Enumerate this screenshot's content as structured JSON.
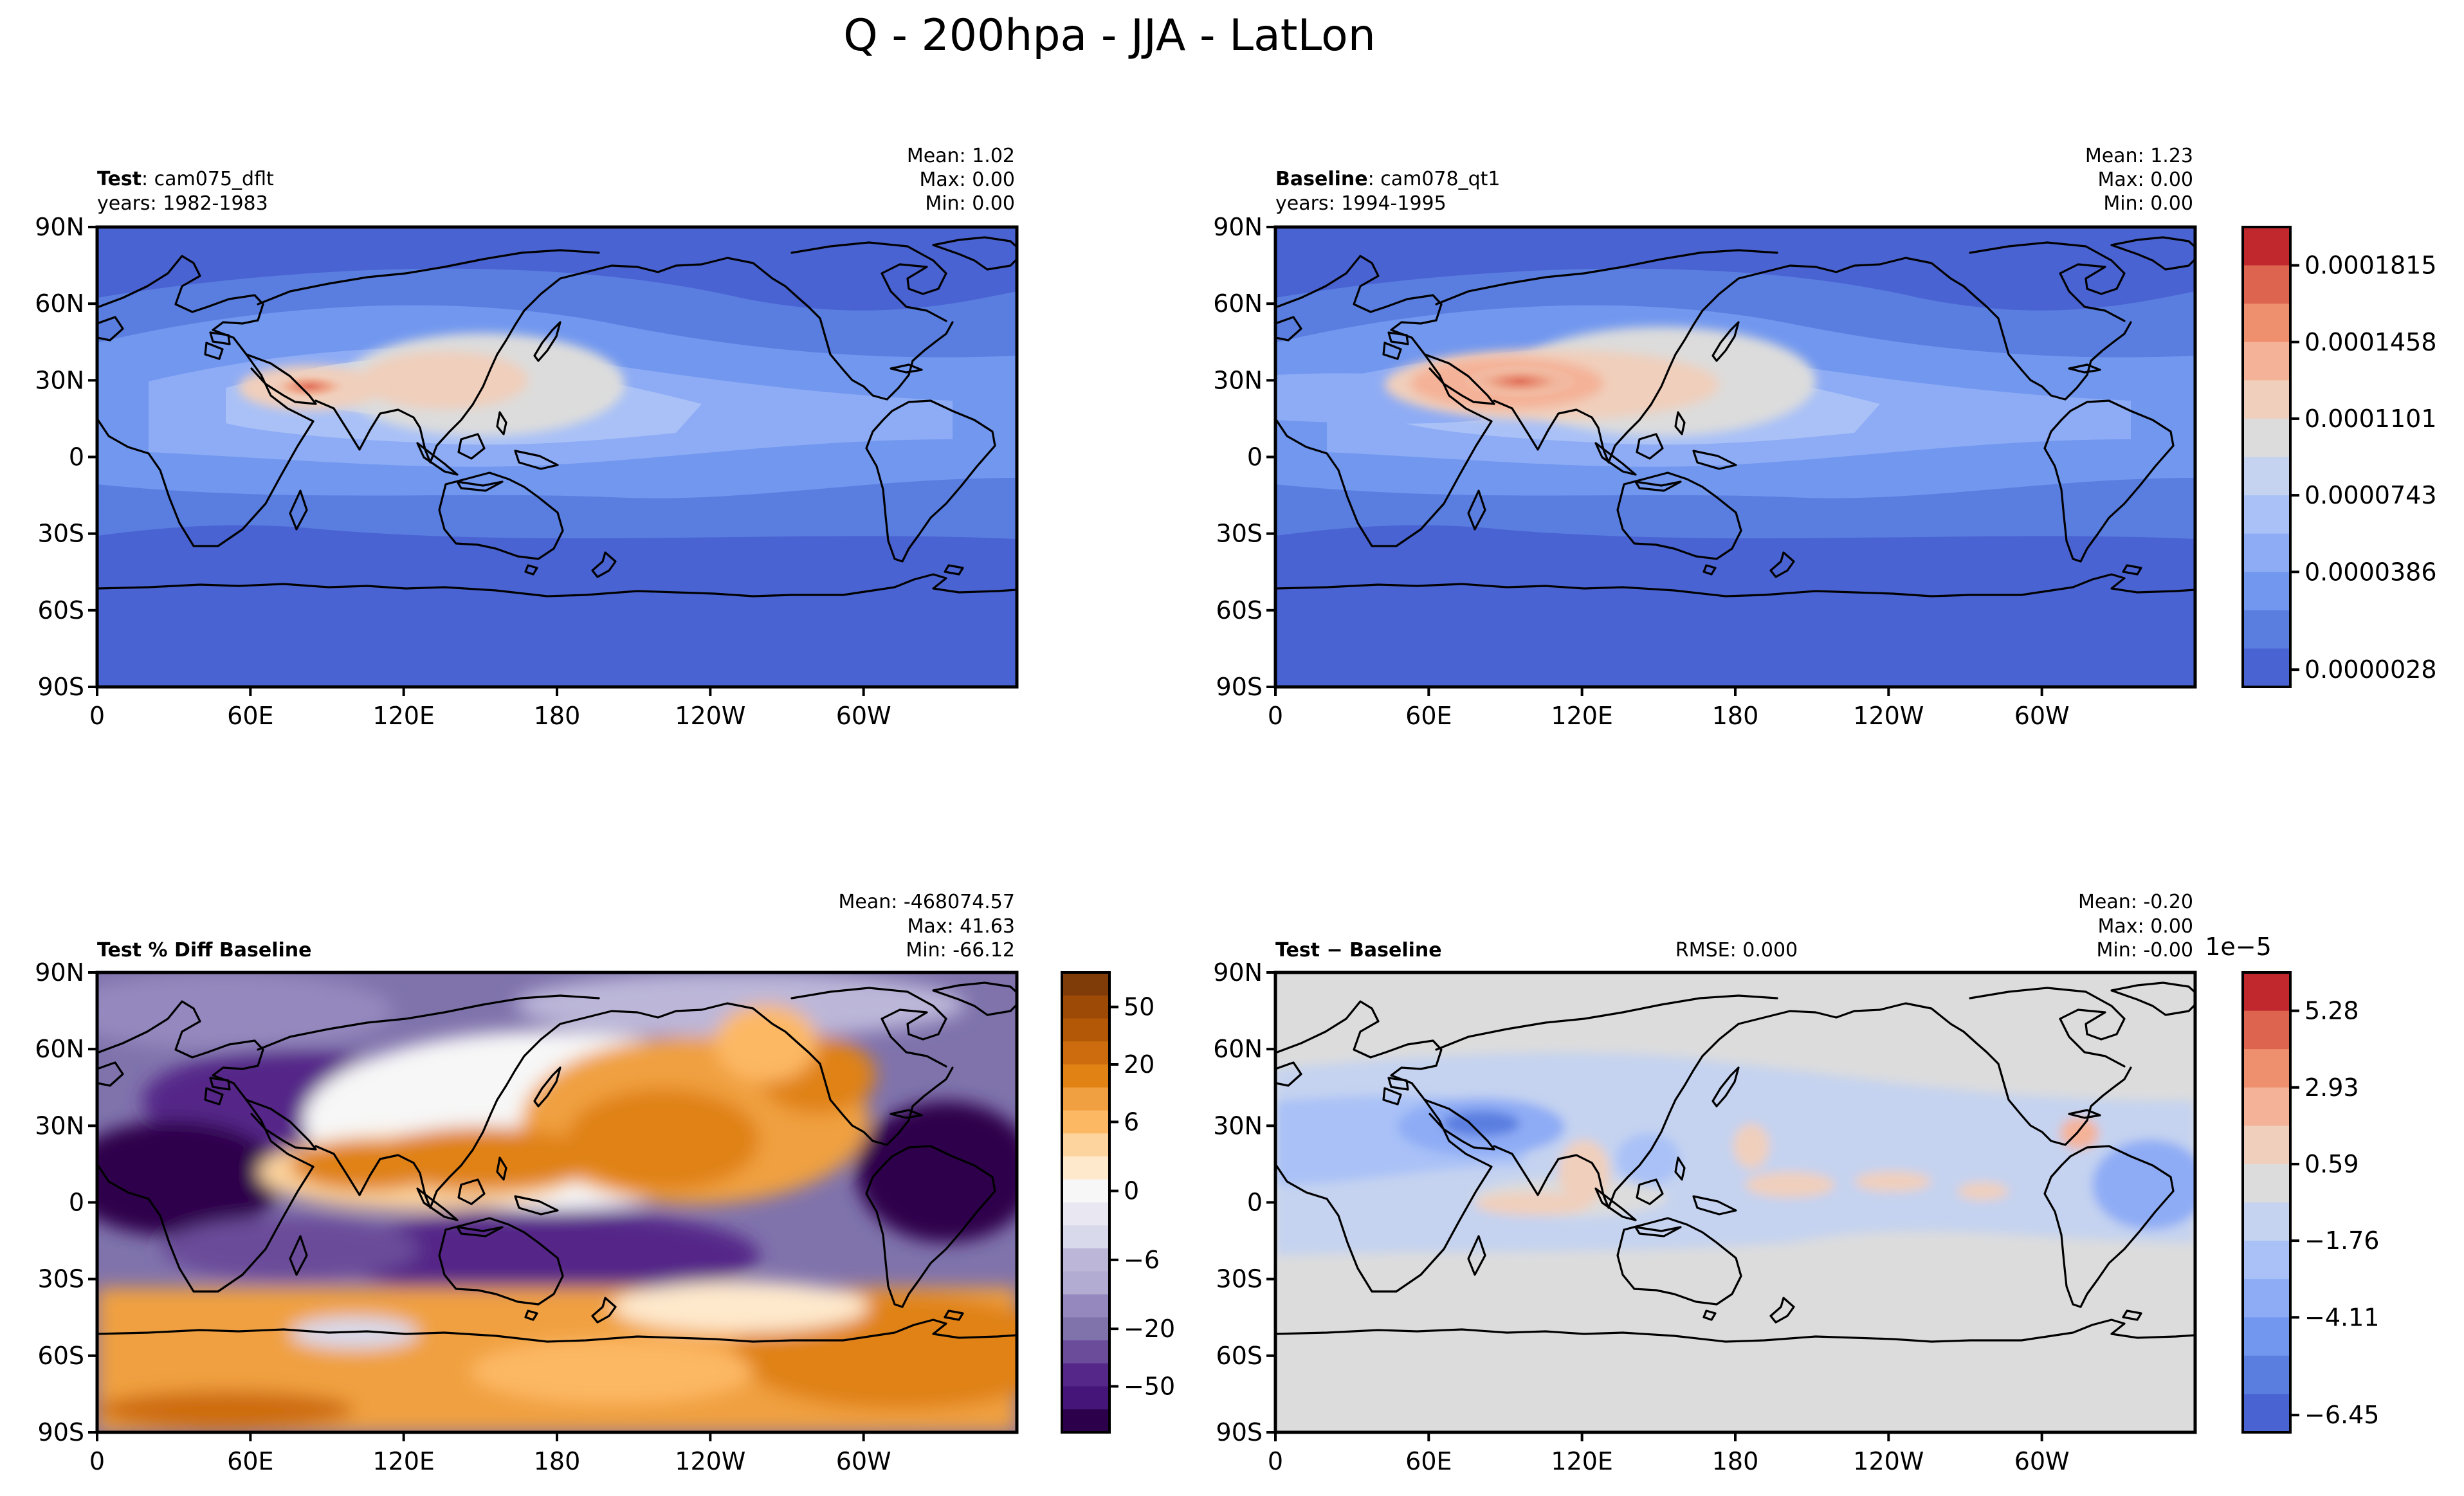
{
  "figure": {
    "title": "Q - 200hpa - JJA - LatLon"
  },
  "panels": {
    "test": {
      "label_bold": "Test",
      "label_rest": ": cam075_dflt",
      "years": "years: 1982-1983",
      "stats": {
        "mean": "Mean:  1.02",
        "max": "Max:  0.00",
        "min": "Min:  0.00"
      }
    },
    "baseline": {
      "label_bold": "Baseline",
      "label_rest": ": cam078_qt1",
      "years": "years: 1994-1995",
      "stats": {
        "mean": "Mean:  1.23",
        "max": "Max:  0.00",
        "min": "Min:  0.00"
      }
    },
    "pctdiff": {
      "label_bold": "Test % Diff Baseline",
      "stats": {
        "mean": "Mean: -468074.57",
        "max": "Max: 41.63",
        "min": "Min: -66.12"
      }
    },
    "diff": {
      "label_bold": "Test − Baseline",
      "rmse": "RMSE: 0.000",
      "stats": {
        "mean": "Mean: -0.20",
        "max": "Max:  0.00",
        "min": "Min: -0.00"
      }
    }
  },
  "axes": {
    "lat_ticks": [
      "90N",
      "60N",
      "30N",
      "0",
      "30S",
      "60S",
      "90S"
    ],
    "lon_ticks": [
      "0",
      "60E",
      "120E",
      "180",
      "120W",
      "60W"
    ]
  },
  "colorbars": {
    "field": {
      "tick_labels": [
        "0.0001815",
        "0.0001458",
        "0.0001101",
        "0.0000743",
        "0.0000386",
        "0.0000028"
      ],
      "colors": [
        "#c0282d",
        "#dd6550",
        "#ee8f6d",
        "#f4b298",
        "#f0cfbc",
        "#dcdcdc",
        "#c5d3f0",
        "#a9c1f7",
        "#8eacf5",
        "#7197ef",
        "#5a7ee0",
        "#4a63d2"
      ]
    },
    "pctdiff": {
      "tick_labels": [
        "50",
        "20",
        "6",
        "0",
        "−6",
        "−20",
        "−50"
      ],
      "colors": [
        "#7f3b08",
        "#9c4a06",
        "#b35806",
        "#cd6c0f",
        "#e08214",
        "#f0a040",
        "#fdb863",
        "#fdd49e",
        "#fee9cc",
        "#f7f7f7",
        "#e8e7f2",
        "#d8daeb",
        "#bcb7d9",
        "#b2abd2",
        "#9488be",
        "#8073ac",
        "#6a4c9a",
        "#542788",
        "#46157a",
        "#2d004b"
      ]
    },
    "diff": {
      "exponent": "1e−5",
      "tick_labels": [
        "5.28",
        "2.93",
        "0.59",
        "−1.76",
        "−4.11",
        "−6.45"
      ],
      "colors": [
        "#c0282d",
        "#dd6550",
        "#ee8f6d",
        "#f4b298",
        "#f0cfbc",
        "#dcdcdc",
        "#c5d3f0",
        "#a9c1f7",
        "#8eacf5",
        "#7197ef",
        "#5a7ee0",
        "#4a63d2"
      ]
    }
  },
  "chart_data": [
    {
      "type": "heatmap",
      "title": "Test : cam075_dflt",
      "variable": "Q",
      "level": "200hpa",
      "season": "JJA",
      "x": [
        "0",
        "60E",
        "120E",
        "180",
        "120W",
        "60W"
      ],
      "y": [
        "90N",
        "60N",
        "30N",
        "0",
        "30S",
        "60S",
        "90S"
      ],
      "levels": [
        2.8e-06,
        3.86e-05,
        7.43e-05,
        0.0001101,
        0.0001458,
        0.0001815
      ],
      "mean": 1.02,
      "max": 0.0,
      "min": 0.0
    },
    {
      "type": "heatmap",
      "title": "Baseline : cam078_qt1",
      "x": [
        "0",
        "60E",
        "120E",
        "180",
        "120W",
        "60W"
      ],
      "y": [
        "90N",
        "60N",
        "30N",
        "0",
        "30S",
        "60S",
        "90S"
      ],
      "levels": [
        2.8e-06,
        3.86e-05,
        7.43e-05,
        0.0001101,
        0.0001458,
        0.0001815
      ],
      "mean": 1.23,
      "max": 0.0,
      "min": 0.0
    },
    {
      "type": "heatmap",
      "title": "Test % Diff Baseline",
      "x": [
        "0",
        "60E",
        "120E",
        "180",
        "120W",
        "60W"
      ],
      "y": [
        "90N",
        "60N",
        "30N",
        "0",
        "30S",
        "60S",
        "90S"
      ],
      "levels": [
        -50,
        -20,
        -6,
        0,
        6,
        20,
        50
      ],
      "mean": -468074.57,
      "max": 41.63,
      "min": -66.12
    },
    {
      "type": "heatmap",
      "title": "Test − Baseline",
      "x": [
        "0",
        "60E",
        "120E",
        "180",
        "120W",
        "60W"
      ],
      "y": [
        "90N",
        "60N",
        "30N",
        "0",
        "30S",
        "60S",
        "90S"
      ],
      "levels_scale": "1e-5",
      "levels": [
        -6.45,
        -4.11,
        -1.76,
        0.59,
        2.93,
        5.28
      ],
      "mean": -0.2,
      "max": 0.0,
      "min": -0.0,
      "rmse": 0.0
    }
  ]
}
